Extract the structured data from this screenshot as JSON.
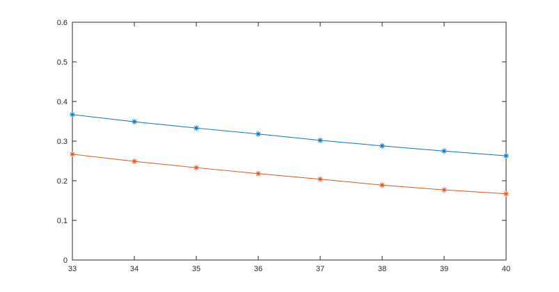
{
  "chart_data": {
    "type": "line",
    "x": [
      33,
      34,
      35,
      36,
      37,
      38,
      39,
      40
    ],
    "series": [
      {
        "color": "#0072BD",
        "marker": "asterisk",
        "values": [
          0.367,
          0.349,
          0.333,
          0.318,
          0.302,
          0.288,
          0.275,
          0.263
        ]
      },
      {
        "color": "#D95319",
        "marker": "asterisk",
        "values": [
          0.267,
          0.249,
          0.233,
          0.218,
          0.204,
          0.189,
          0.177,
          0.167
        ]
      }
    ],
    "xlim": [
      33,
      40
    ],
    "xticks": [
      33,
      34,
      35,
      36,
      37,
      38,
      39,
      40
    ],
    "ylim": [
      0,
      0.6
    ],
    "yticks": [
      0,
      0.1,
      0.2,
      0.3,
      0.4,
      0.5,
      0.6
    ],
    "grid": false,
    "box": true
  }
}
